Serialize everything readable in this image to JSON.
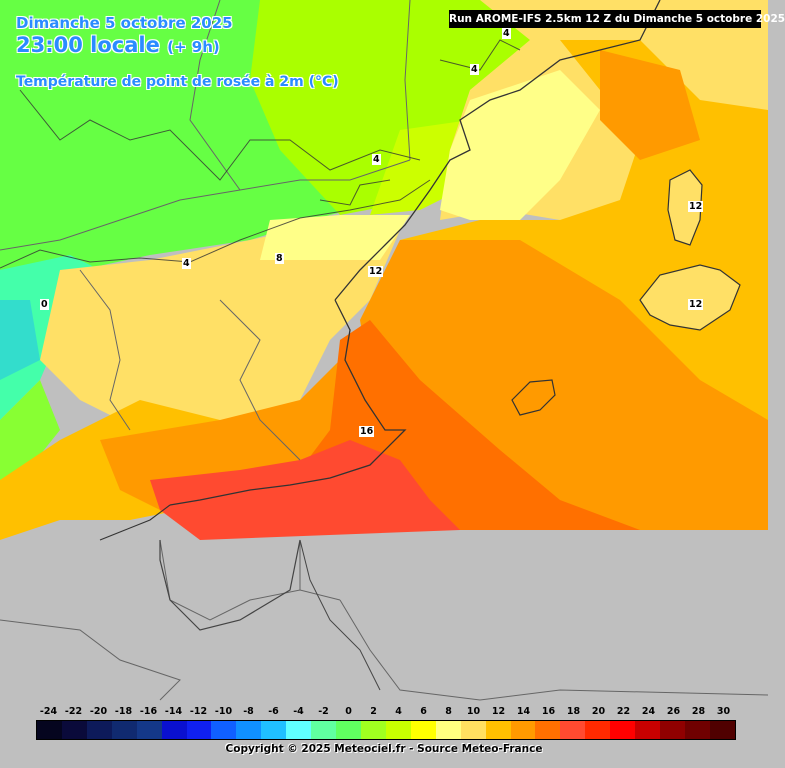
{
  "header": {
    "date": "Dimanche 5 octobre 2025",
    "time": "23:00 locale",
    "offset": "(+ 9h)",
    "variable": "Température de point de rosée à 2m (°C)"
  },
  "run_info": "Run AROME-IFS 2.5km 12 Z du Dimanche 5 octobre 2025",
  "contour_labels": [
    "4",
    "4",
    "4",
    "4",
    "8",
    "12",
    "12",
    "12",
    "16",
    "0"
  ],
  "legend": {
    "ticks": [
      "-24",
      "-22",
      "-20",
      "-18",
      "-16",
      "-14",
      "-12",
      "-10",
      "-8",
      "-6",
      "-4",
      "-2",
      "0",
      "2",
      "4",
      "6",
      "8",
      "10",
      "12",
      "14",
      "16",
      "18",
      "20",
      "22",
      "24",
      "26",
      "28",
      "30"
    ],
    "colors": [
      "#05051f",
      "#0a0a3a",
      "#0d1a5a",
      "#102a70",
      "#143888",
      "#0a10d0",
      "#1020f0",
      "#1060ff",
      "#1090ff",
      "#20c0ff",
      "#60ffff",
      "#60ffa0",
      "#60ff60",
      "#a0ff20",
      "#c8ff00",
      "#ffff00",
      "#ffff80",
      "#ffe060",
      "#ffc000",
      "#ff9a00",
      "#ff7000",
      "#ff4a30",
      "#ff2a00",
      "#ff0000",
      "#c80000",
      "#900000",
      "#700000",
      "#500000"
    ]
  },
  "copyright": "Copyright © 2025 Meteociel.fr - Source Meteo-France"
}
